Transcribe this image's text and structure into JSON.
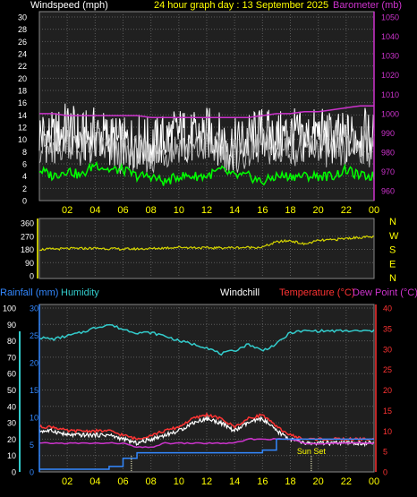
{
  "header": {
    "windspeed_label": "Windspeed (mph)",
    "title": "24 hour graph day : 13 September 2025",
    "barometer_label": "Barometer (mb)"
  },
  "panel3_header": {
    "rainfall_label": "Rainfall (mm)",
    "humidity_label": "Humidity",
    "windchill_label": "Windchill",
    "temperature_label": "Temperature (°C)",
    "dewpoint_label": "Dew Point (°C)"
  },
  "colors": {
    "background": "#000000",
    "plot_bg": "#202020",
    "grid": "#5a5a5a",
    "windspeed": "#ffffff",
    "gust": "#ffffff",
    "wind_avg": "#00ff00",
    "barometer": "#cc33cc",
    "direction": "#d4d400",
    "humidity": "#33cccc",
    "temperature": "#ff3333",
    "dewpoint": "#cc33cc",
    "windchill": "#ffffff",
    "rainfall": "#3388ff",
    "yellow_text": "#ffff00",
    "sunrise_sunset": "#ffffcc"
  },
  "chart_data": [
    {
      "type": "line",
      "id": "wind-barometer",
      "title": "24 hour graph day : 13 September 2025",
      "x_ticks": [
        "02",
        "04",
        "06",
        "08",
        "10",
        "12",
        "14",
        "16",
        "18",
        "20",
        "22",
        "00"
      ],
      "y_left_label": "Windspeed (mph)",
      "y_left_ticks": [
        0,
        2,
        4,
        6,
        8,
        10,
        12,
        14,
        16,
        18,
        20,
        22,
        24,
        26,
        28,
        30
      ],
      "ylim_left": [
        0,
        30
      ],
      "y_right_label": "Barometer (mb)",
      "y_right_ticks": [
        960,
        970,
        980,
        990,
        1000,
        1010,
        1020,
        1030,
        1040,
        1050
      ],
      "ylim_right": [
        955,
        1050
      ],
      "grid": true,
      "x_hours": [
        0,
        1,
        2,
        3,
        4,
        5,
        6,
        7,
        8,
        9,
        10,
        11,
        12,
        13,
        14,
        15,
        16,
        17,
        18,
        19,
        20,
        21,
        22,
        23,
        24
      ],
      "series": [
        {
          "key": "gust",
          "values": [
            11,
            10,
            12,
            10,
            11,
            10,
            9,
            10,
            9,
            10,
            11,
            10,
            11,
            10,
            9,
            10,
            11,
            10,
            11,
            10,
            11,
            10,
            10,
            11,
            10
          ]
        },
        {
          "key": "average",
          "values": [
            5,
            4,
            5,
            4,
            6,
            5,
            5,
            4,
            4,
            3,
            4,
            4,
            4,
            5,
            4,
            4,
            3,
            4,
            4,
            4,
            4,
            4,
            5,
            4,
            4
          ]
        },
        {
          "key": "barometer",
          "values": [
            1000,
            1000,
            999,
            999,
            999,
            999,
            999,
            999,
            998,
            998,
            998,
            998,
            998,
            998,
            998,
            998,
            999,
            1000,
            1000,
            1001,
            1001,
            1002,
            1003,
            1004,
            1004
          ]
        }
      ]
    },
    {
      "type": "line",
      "id": "wind-direction",
      "y_ticks": [
        0,
        90,
        180,
        270,
        360
      ],
      "ylim": [
        0,
        360
      ],
      "direction_labels": [
        "N",
        "W",
        "S",
        "E",
        "N"
      ],
      "x_hours": [
        0,
        2,
        4,
        6,
        8,
        10,
        12,
        14,
        16,
        17,
        18,
        19,
        20,
        21,
        22,
        23,
        24
      ],
      "series": [
        {
          "key": "direction",
          "values": [
            180,
            185,
            188,
            182,
            185,
            195,
            190,
            192,
            195,
            230,
            240,
            215,
            240,
            245,
            255,
            262,
            265
          ]
        }
      ]
    },
    {
      "type": "line",
      "id": "temp-humidity-rain",
      "x_ticks": [
        "02",
        "04",
        "06",
        "08",
        "10",
        "12",
        "14",
        "16",
        "18",
        "20",
        "22",
        "00"
      ],
      "y_left_ticks": [
        0,
        10,
        20,
        30,
        40,
        50,
        60,
        70,
        80,
        90,
        100
      ],
      "ylim_left": [
        0,
        100
      ],
      "y_rain_ticks": [
        0,
        5,
        10,
        15,
        20,
        25,
        30
      ],
      "ylim_rain": [
        0,
        30
      ],
      "y_right_ticks": [
        0,
        5,
        10,
        15,
        20,
        25,
        30,
        35,
        40
      ],
      "ylim_right": [
        0,
        40
      ],
      "sun_rise_hour": 6.6,
      "sun_set_hour": 19.5,
      "sun_set_label": "Sun Set",
      "grid": true,
      "x_hours": [
        0,
        1,
        2,
        3,
        4,
        5,
        6,
        7,
        8,
        9,
        10,
        11,
        12,
        13,
        14,
        15,
        16,
        17,
        18,
        19,
        20,
        21,
        22,
        23,
        24
      ],
      "series": [
        {
          "key": "humidity",
          "values": [
            82,
            81,
            83,
            85,
            88,
            90,
            87,
            85,
            85,
            83,
            80,
            78,
            76,
            72,
            74,
            78,
            74,
            78,
            85,
            86,
            86,
            86,
            86,
            86,
            86
          ]
        },
        {
          "key": "temperature",
          "values": [
            11,
            11,
            10,
            10,
            10,
            10,
            9,
            8,
            9,
            10,
            11,
            13,
            14,
            13,
            11,
            13,
            14,
            11,
            9,
            8,
            8,
            8,
            8,
            8,
            8
          ]
        },
        {
          "key": "windchill",
          "values": [
            10,
            10,
            9,
            9,
            9,
            9,
            8,
            7,
            8,
            9,
            10,
            12,
            13,
            12,
            10,
            12,
            13,
            10,
            8,
            7,
            7,
            7,
            7,
            7,
            7
          ]
        },
        {
          "key": "dewpoint",
          "values": [
            7,
            7,
            7,
            7,
            7,
            7,
            7,
            6,
            6,
            7,
            7,
            7,
            7,
            7,
            7,
            8,
            8,
            8,
            8,
            7,
            7,
            7,
            7,
            7,
            7
          ]
        },
        {
          "key": "rainfall",
          "values": [
            0.5,
            0.5,
            0.5,
            0.5,
            0.5,
            1.0,
            2.5,
            3.5,
            3.5,
            3.5,
            3.5,
            3.5,
            3.5,
            3.5,
            3.5,
            3.5,
            4.0,
            6.0,
            6.0,
            6.0,
            6.0,
            6.0,
            6.0,
            6.0,
            6.0
          ]
        }
      ]
    }
  ]
}
